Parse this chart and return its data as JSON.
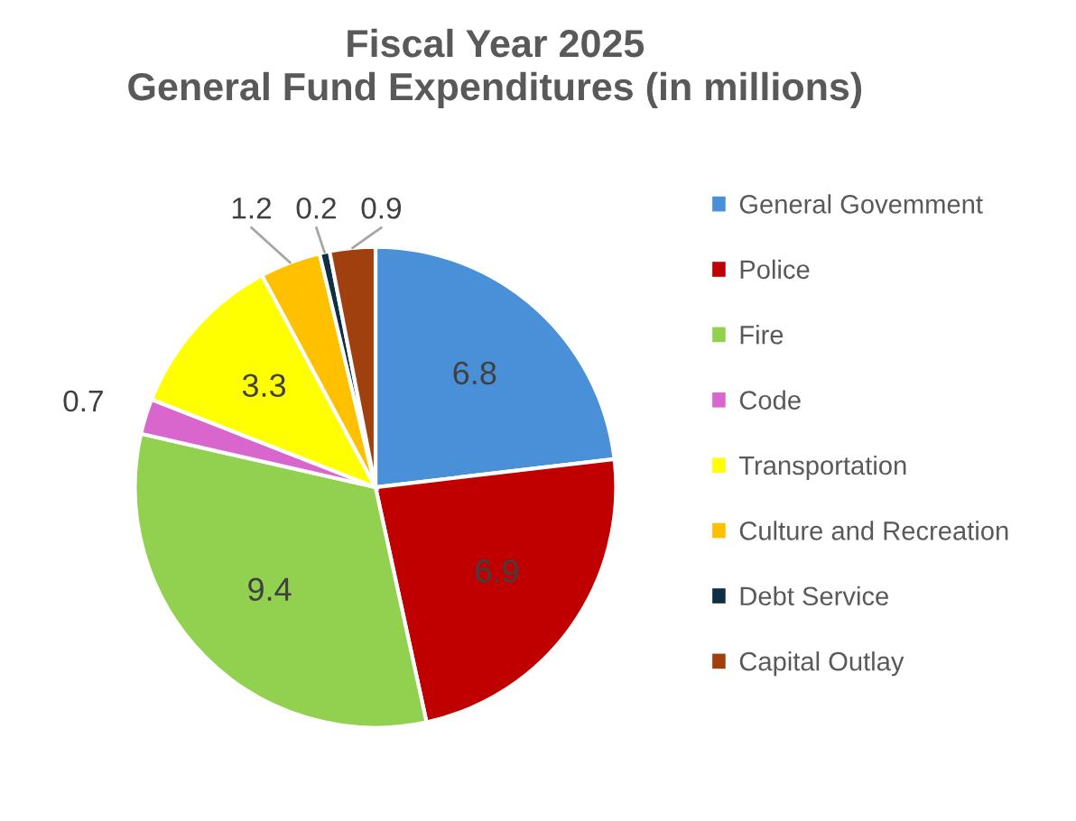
{
  "chart_data": {
    "type": "pie",
    "title": "Fiscal Year 2025\nGeneral Fund Expenditures (in millions)",
    "categories": [
      "General Govemment",
      "Police",
      "Fire",
      "Code",
      "Transportation",
      "Culture and Recreation",
      "Debt Service",
      "Capital Outlay"
    ],
    "values": [
      6.8,
      6.9,
      9.4,
      0.7,
      3.3,
      1.2,
      0.2,
      0.9
    ],
    "colors": [
      "#4a90d9",
      "#c00000",
      "#92d050",
      "#d966cc",
      "#ffff00",
      "#ffc000",
      "#0f3044",
      "#a0400f"
    ],
    "data_labels": true,
    "legend": "right"
  }
}
